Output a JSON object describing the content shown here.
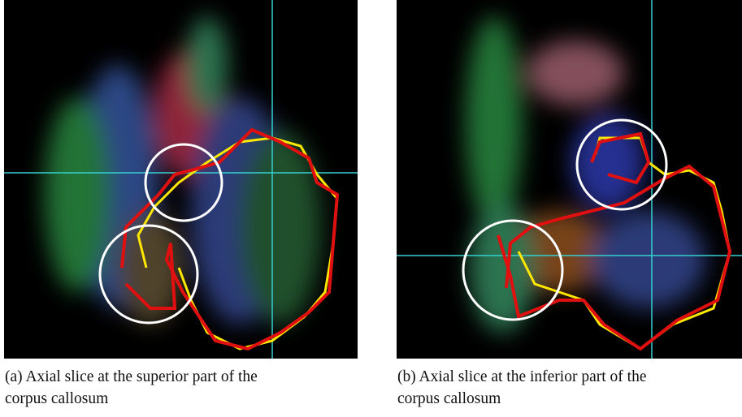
{
  "figures": [
    {
      "caption": [
        "(a) Axial slice at the superior part of the",
        "corpus callosum"
      ]
    },
    {
      "caption": [
        "(b) Axial slice at the inferior part of the",
        "corpus callosum"
      ]
    }
  ]
}
